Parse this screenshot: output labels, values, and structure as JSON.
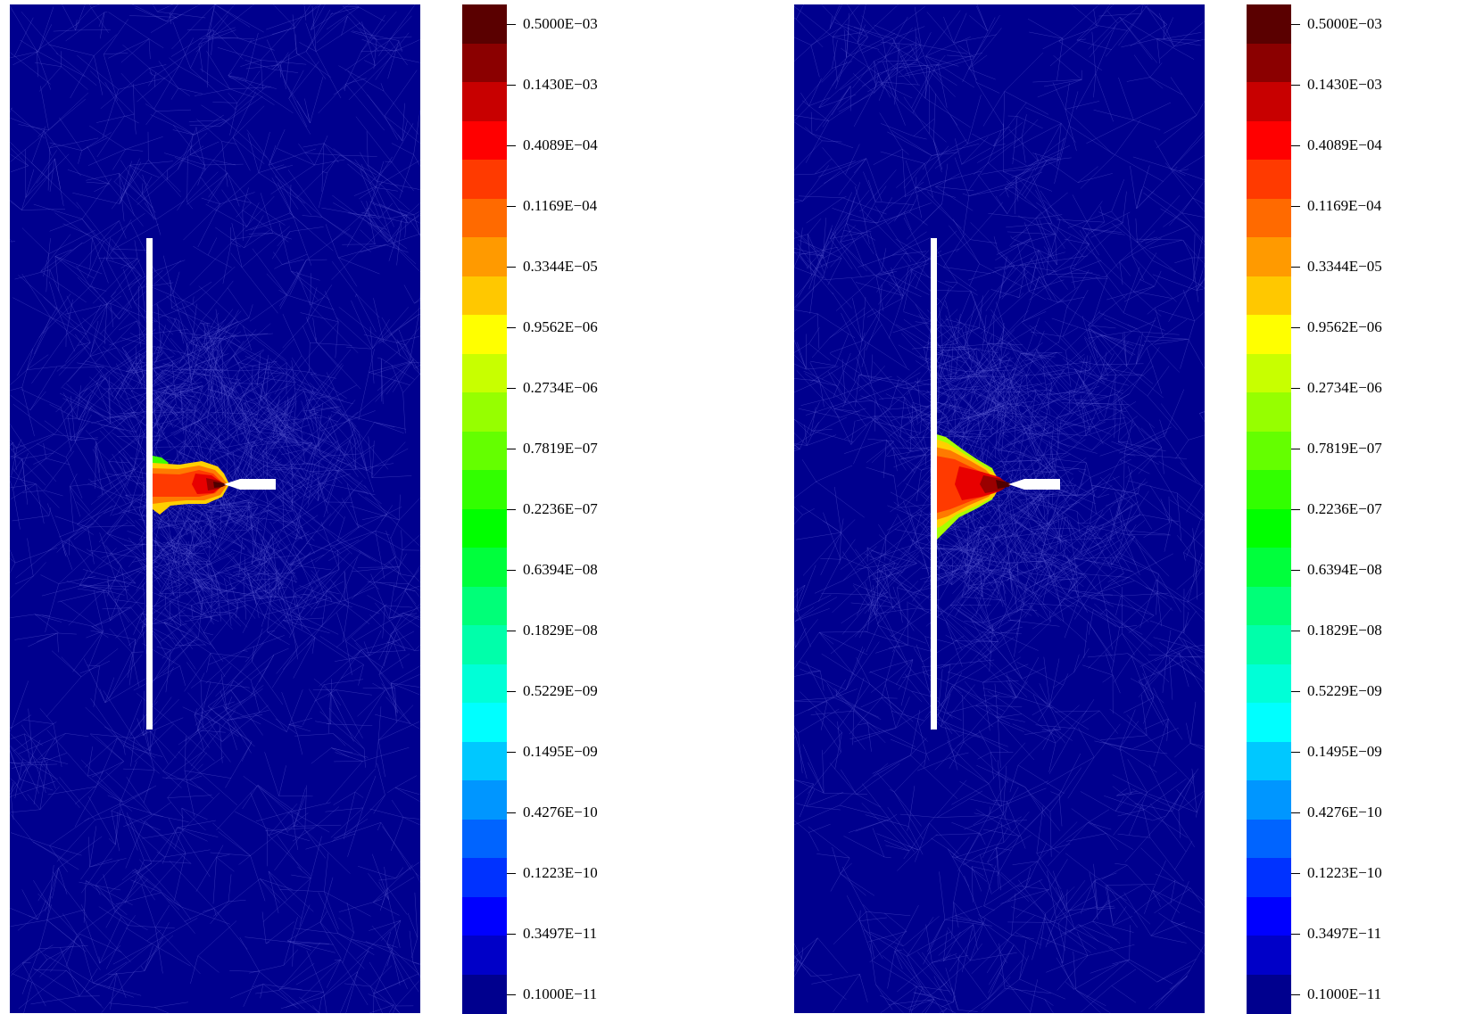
{
  "figure": {
    "panels": [
      {
        "id": "left",
        "plume": "small"
      },
      {
        "id": "right",
        "plume": "large"
      }
    ]
  },
  "colorbar": {
    "tick_labels": [
      "0.5000E−03",
      "0.1430E−03",
      "0.4089E−04",
      "0.1169E−04",
      "0.3344E−05",
      "0.9562E−06",
      "0.2734E−06",
      "0.7819E−07",
      "0.2236E−07",
      "0.6394E−08",
      "0.1829E−08",
      "0.5229E−09",
      "0.1495E−09",
      "0.4276E−10",
      "0.1223E−10",
      "0.3497E−11",
      "0.1000E−11"
    ],
    "band_colors_top_to_bottom": [
      "#5a0000",
      "#8b0000",
      "#c80000",
      "#ff0000",
      "#ff3a00",
      "#ff6a00",
      "#ff9a00",
      "#ffc800",
      "#ffff00",
      "#c8ff00",
      "#96ff00",
      "#64ff00",
      "#32ff00",
      "#00ff00",
      "#00ff3c",
      "#00ff78",
      "#00ffaa",
      "#00ffd7",
      "#00ffff",
      "#00c8ff",
      "#0096ff",
      "#0064ff",
      "#0032ff",
      "#0000ff",
      "#0000c8",
      "#00008e"
    ]
  },
  "colors": {
    "background_field": "#00008e",
    "fracture": "#ffffff",
    "mesh_lines": "#5a5ad0"
  }
}
